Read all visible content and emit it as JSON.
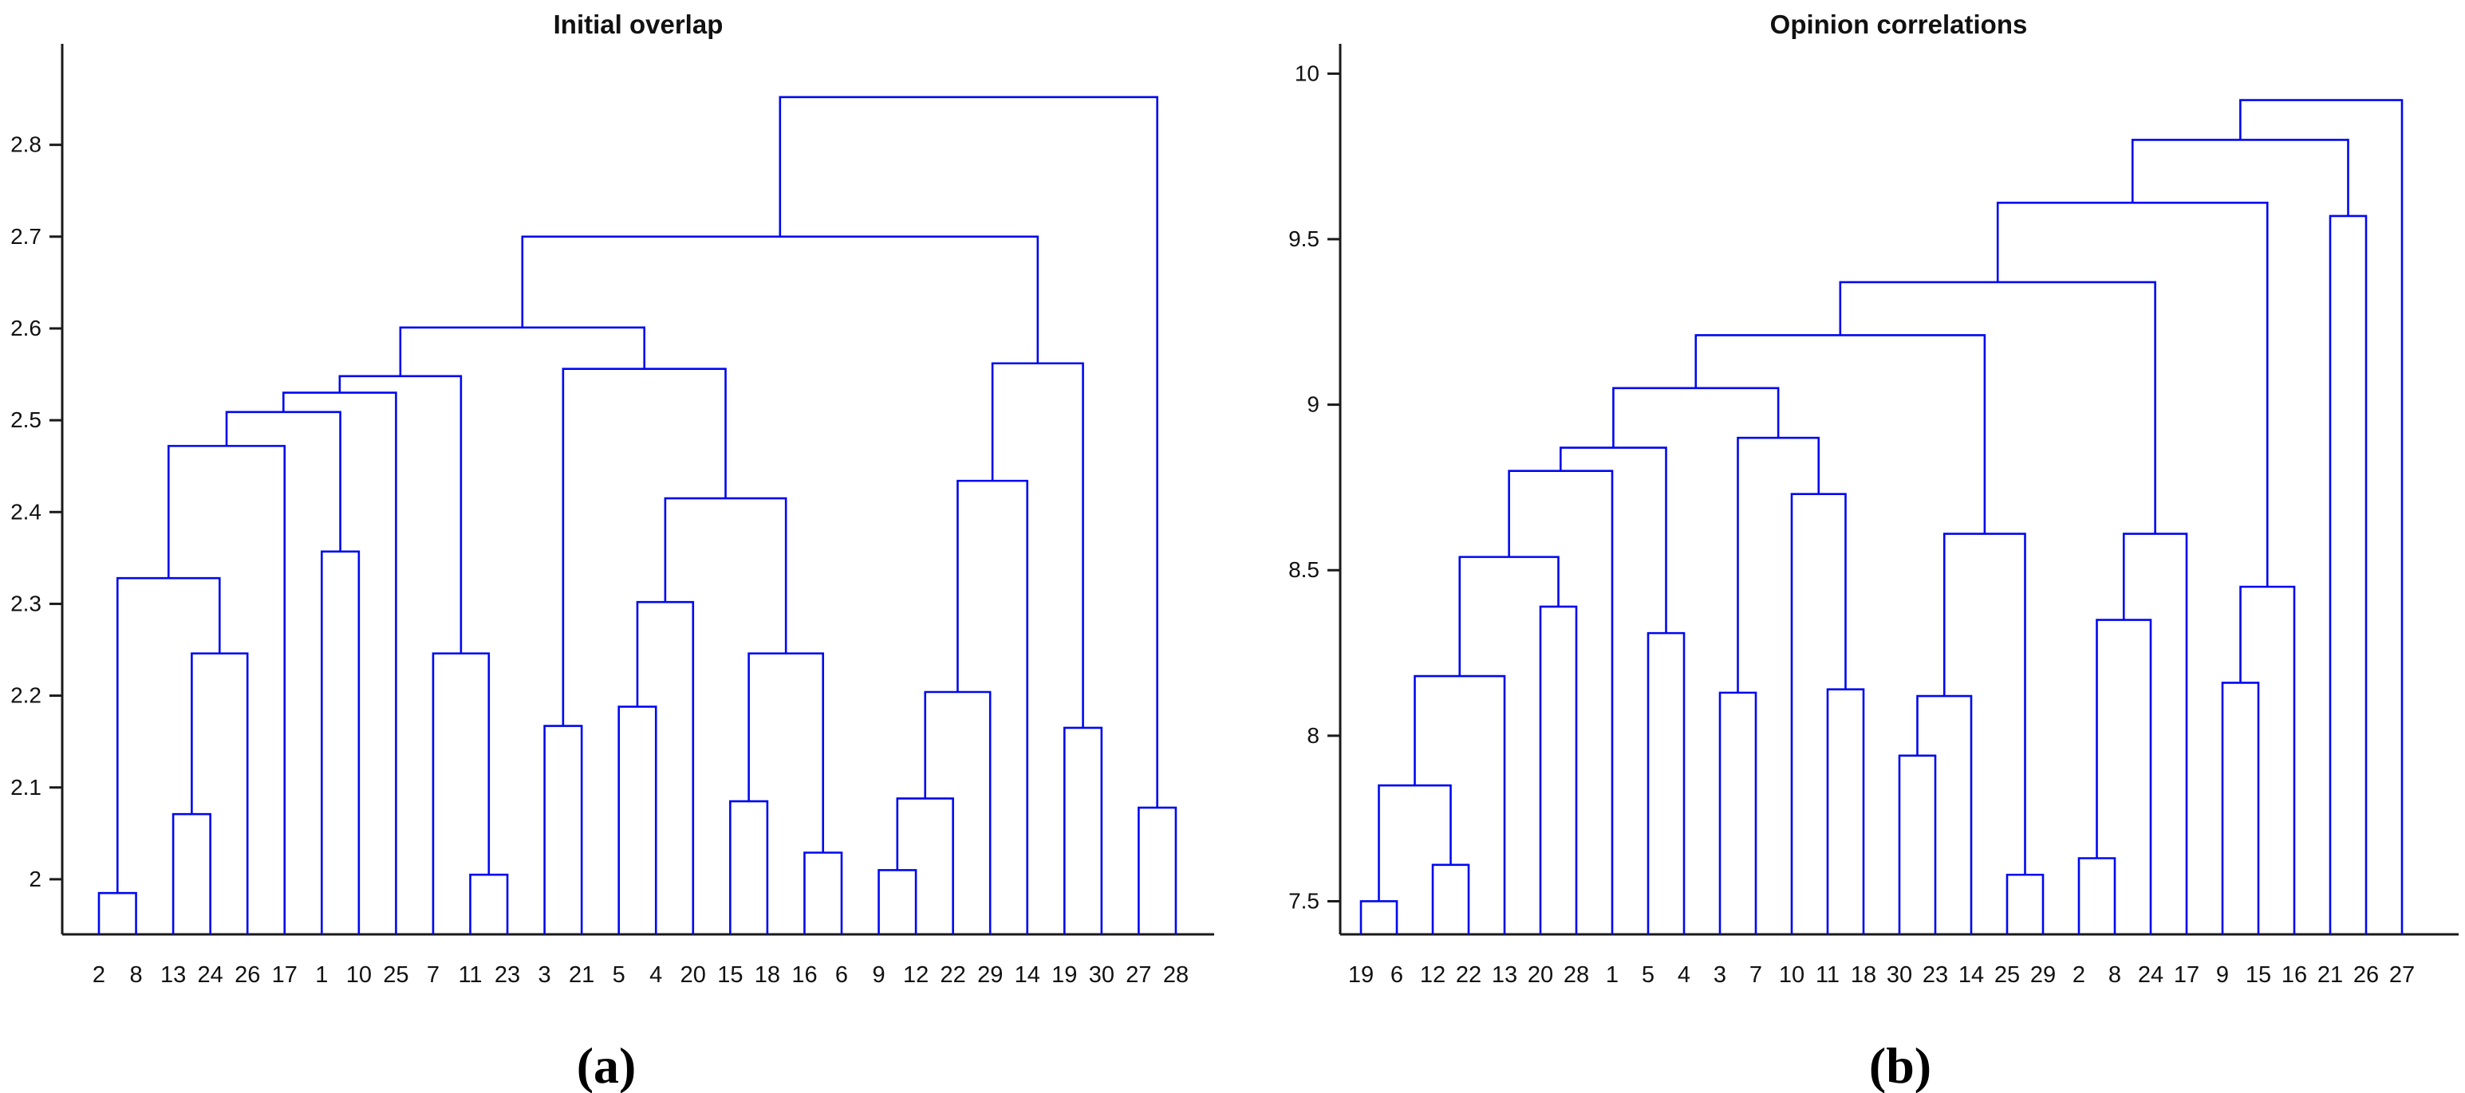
{
  "figure": {
    "background": "#ffffff",
    "line_color": "#0008f0",
    "axis_color": "#1a1a1a",
    "text_color": "#111111"
  },
  "chart_data": [
    {
      "type": "dendrogram",
      "title": "Initial overlap",
      "caption": "(a)",
      "ylabel": "",
      "xlabel": "",
      "grid": false,
      "ylim": [
        1.94,
        2.91
      ],
      "yticks": [
        2.0,
        2.1,
        2.2,
        2.3,
        2.4,
        2.5,
        2.6,
        2.7,
        2.8
      ],
      "ytick_labels": [
        "2",
        "2.1",
        "2.2",
        "2.3",
        "2.4",
        "2.5",
        "2.6",
        "2.7",
        "2.8"
      ],
      "leaves": [
        "2",
        "8",
        "13",
        "24",
        "26",
        "17",
        "1",
        "10",
        "25",
        "7",
        "11",
        "23",
        "3",
        "21",
        "5",
        "4",
        "20",
        "15",
        "18",
        "16",
        "6",
        "9",
        "12",
        "22",
        "29",
        "14",
        "19",
        "30",
        "27",
        "28"
      ],
      "merges": [
        [
          0,
          1,
          1.985
        ],
        [
          2,
          3,
          2.071
        ],
        [
          31,
          4,
          2.246
        ],
        [
          30,
          32,
          2.328
        ],
        [
          33,
          5,
          2.472
        ],
        [
          6,
          7,
          2.357
        ],
        [
          34,
          35,
          2.509
        ],
        [
          36,
          8,
          2.53
        ],
        [
          10,
          11,
          2.005
        ],
        [
          9,
          38,
          2.246
        ],
        [
          37,
          39,
          2.548
        ],
        [
          12,
          13,
          2.167
        ],
        [
          14,
          15,
          2.188
        ],
        [
          42,
          16,
          2.302
        ],
        [
          17,
          18,
          2.085
        ],
        [
          19,
          20,
          2.029
        ],
        [
          44,
          45,
          2.246
        ],
        [
          43,
          46,
          2.415
        ],
        [
          41,
          47,
          2.556
        ],
        [
          40,
          48,
          2.601
        ],
        [
          21,
          22,
          2.01
        ],
        [
          50,
          23,
          2.088
        ],
        [
          51,
          24,
          2.204
        ],
        [
          52,
          25,
          2.434
        ],
        [
          26,
          27,
          2.165
        ],
        [
          53,
          54,
          2.562
        ],
        [
          49,
          55,
          2.7
        ],
        [
          28,
          29,
          2.078
        ],
        [
          56,
          57,
          2.852
        ]
      ]
    },
    {
      "type": "dendrogram",
      "title": "Opinion correlations",
      "caption": "(b)",
      "ylabel": "",
      "xlabel": "",
      "grid": false,
      "ylim": [
        7.4,
        10.09
      ],
      "yticks": [
        7.5,
        8.0,
        8.5,
        9.0,
        9.5,
        10.0
      ],
      "ytick_labels": [
        "7.5",
        "8",
        "8.5",
        "9",
        "9.5",
        "10"
      ],
      "leaves": [
        "19",
        "6",
        "12",
        "22",
        "13",
        "20",
        "28",
        "1",
        "5",
        "4",
        "3",
        "7",
        "10",
        "11",
        "18",
        "30",
        "23",
        "14",
        "25",
        "29",
        "2",
        "8",
        "24",
        "17",
        "9",
        "15",
        "16",
        "21",
        "26",
        "27"
      ],
      "merges": [
        [
          0,
          1,
          7.5
        ],
        [
          2,
          3,
          7.61
        ],
        [
          30,
          31,
          7.85
        ],
        [
          32,
          4,
          8.18
        ],
        [
          5,
          6,
          8.39
        ],
        [
          33,
          34,
          8.54
        ],
        [
          35,
          7,
          8.8
        ],
        [
          8,
          9,
          8.31
        ],
        [
          36,
          37,
          8.87
        ],
        [
          10,
          11,
          8.13
        ],
        [
          13,
          14,
          8.14
        ],
        [
          12,
          40,
          8.73
        ],
        [
          39,
          41,
          8.9
        ],
        [
          38,
          42,
          9.05
        ],
        [
          15,
          16,
          7.94
        ],
        [
          44,
          17,
          8.12
        ],
        [
          18,
          19,
          7.58
        ],
        [
          45,
          46,
          8.61
        ],
        [
          43,
          47,
          9.21
        ],
        [
          20,
          21,
          7.63
        ],
        [
          49,
          22,
          8.35
        ],
        [
          50,
          23,
          8.61
        ],
        [
          48,
          51,
          9.37
        ],
        [
          24,
          25,
          8.16
        ],
        [
          53,
          26,
          8.45
        ],
        [
          52,
          54,
          9.61
        ],
        [
          27,
          28,
          9.57
        ],
        [
          55,
          56,
          9.8
        ],
        [
          57,
          29,
          9.92
        ]
      ]
    }
  ]
}
